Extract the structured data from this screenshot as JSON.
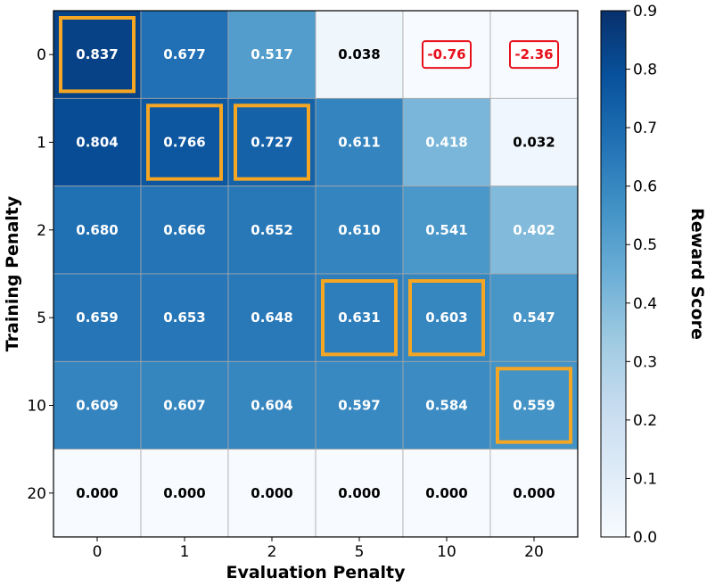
{
  "chart_data": {
    "type": "heatmap",
    "xlabel": "Evaluation Penalty",
    "ylabel": "Training Penalty",
    "x_categories": [
      "0",
      "1",
      "2",
      "5",
      "10",
      "20"
    ],
    "y_categories": [
      "0",
      "1",
      "2",
      "5",
      "10",
      "20"
    ],
    "values": [
      [
        0.837,
        0.677,
        0.517,
        0.038,
        -0.76,
        -2.36
      ],
      [
        0.804,
        0.766,
        0.727,
        0.611,
        0.418,
        0.032
      ],
      [
        0.68,
        0.666,
        0.652,
        0.61,
        0.541,
        0.402
      ],
      [
        0.659,
        0.653,
        0.648,
        0.631,
        0.603,
        0.547
      ],
      [
        0.609,
        0.607,
        0.604,
        0.597,
        0.584,
        0.559
      ],
      [
        0.0,
        0.0,
        0.0,
        0.0,
        0.0,
        0.0
      ]
    ],
    "labels": [
      [
        "0.837",
        "0.677",
        "0.517",
        "0.038",
        "-0.76",
        "-2.36"
      ],
      [
        "0.804",
        "0.766",
        "0.727",
        "0.611",
        "0.418",
        "0.032"
      ],
      [
        "0.680",
        "0.666",
        "0.652",
        "0.610",
        "0.541",
        "0.402"
      ],
      [
        "0.659",
        "0.653",
        "0.648",
        "0.631",
        "0.603",
        "0.547"
      ],
      [
        "0.609",
        "0.607",
        "0.604",
        "0.597",
        "0.584",
        "0.559"
      ],
      [
        "0.000",
        "0.000",
        "0.000",
        "0.000",
        "0.000",
        "0.000"
      ]
    ],
    "highlighted_cells": [
      [
        0,
        0
      ],
      [
        1,
        1
      ],
      [
        1,
        2
      ],
      [
        3,
        3
      ],
      [
        3,
        4
      ],
      [
        4,
        5
      ]
    ],
    "highlight_color": "#f5a623",
    "negative_boxed_cells": [
      [
        0,
        4
      ],
      [
        0,
        5
      ]
    ],
    "negative_color": "#e8101a",
    "colorbar": {
      "label": "Reward Score",
      "vmin": 0.0,
      "vmax": 0.9,
      "ticks": [
        "0.0",
        "0.1",
        "0.2",
        "0.3",
        "0.4",
        "0.5",
        "0.6",
        "0.7",
        "0.8",
        "0.9"
      ],
      "colormap": "Blues"
    }
  }
}
